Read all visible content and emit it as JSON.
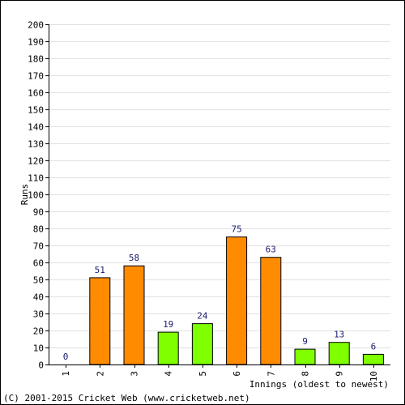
{
  "chart_data": {
    "type": "bar",
    "title": "",
    "xlabel": "Innings (oldest to newest)",
    "ylabel": "Runs",
    "ylim": [
      0,
      200
    ],
    "ytick_step": 10,
    "grid": true,
    "categories": [
      "1",
      "2",
      "3",
      "4",
      "5",
      "6",
      "7",
      "8",
      "9",
      "10"
    ],
    "values": [
      0,
      51,
      58,
      19,
      24,
      75,
      63,
      9,
      13,
      6
    ],
    "bar_colors": [
      "#ff8c00",
      "#ff8c00",
      "#ff8c00",
      "#7fff00",
      "#7fff00",
      "#ff8c00",
      "#ff8c00",
      "#7fff00",
      "#7fff00",
      "#7fff00"
    ]
  },
  "colors": {
    "orange": "#ff8c00",
    "green": "#7fff00",
    "grid": "#e0e0e0",
    "label": "#1a1a6e"
  },
  "footer": {
    "copyright": "(C) 2001-2015 Cricket Web (www.cricketweb.net)"
  }
}
